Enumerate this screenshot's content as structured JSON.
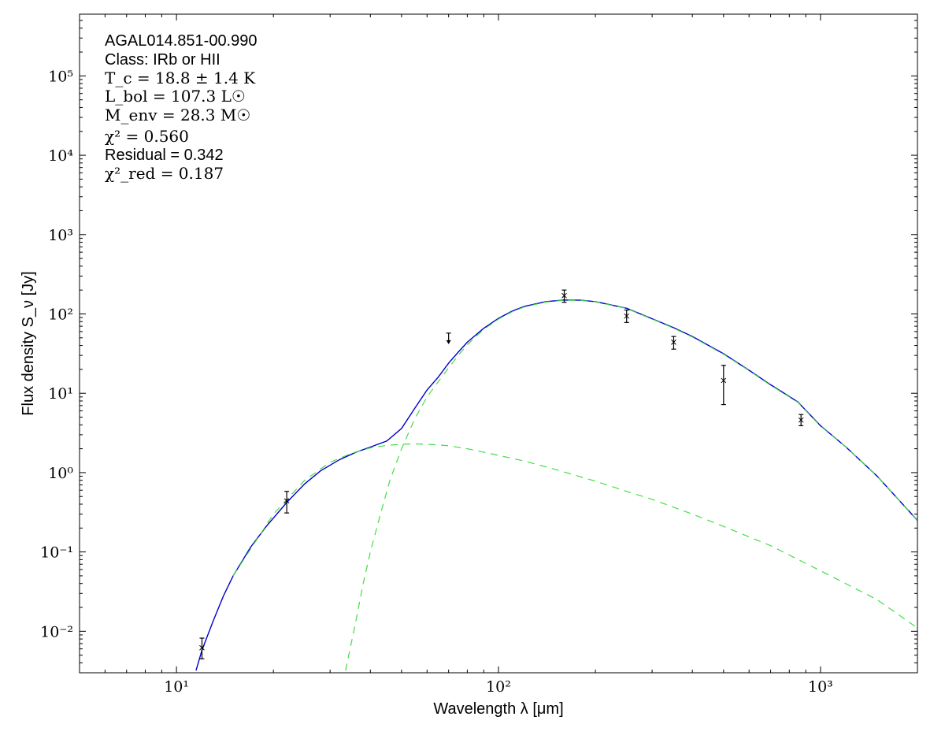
{
  "chart_data": {
    "type": "line",
    "source_name": "AGAL014.851-00.990",
    "annotations": {
      "class_text": "Class: IRb or HII",
      "tc_text": "T_c = 18.8 ± 1.4 K",
      "lbol_text": "L_bol = 107.3 L☉",
      "menv_text": "M_env = 28.3 M☉",
      "chi2_text": "χ² = 0.560",
      "residual_text": "Residual = 0.342",
      "chi2red_text": "χ²_red = 0.187"
    },
    "xlabel": "Wavelength λ [μm]",
    "ylabel": "Flux density S_ν [Jy]",
    "xscale": "log",
    "yscale": "log",
    "xlim": [
      5,
      2000
    ],
    "ylim": [
      0.003,
      600000
    ],
    "xticks": [
      10,
      100,
      1000
    ],
    "xtick_labels": [
      "10¹",
      "10²",
      "10³"
    ],
    "yticks": [
      0.01,
      0.1,
      1,
      10,
      100,
      1000,
      10000,
      100000
    ],
    "ytick_labels": [
      "10⁻²",
      "10⁻¹",
      "10⁰",
      "10¹",
      "10²",
      "10³",
      "10⁴",
      "10⁵"
    ],
    "grid": false,
    "colors": {
      "total": "#0000cc",
      "components": "#44dd44",
      "points": "#000000"
    },
    "series": [
      {
        "style": "solid",
        "x": [
          11.5,
          12,
          13,
          14,
          15,
          17,
          19,
          22,
          25,
          28,
          32,
          36,
          40,
          45,
          50,
          55,
          60,
          65,
          70,
          75,
          80,
          90,
          100,
          110,
          120,
          140,
          160,
          180,
          200,
          250,
          300,
          350,
          400,
          500,
          600,
          700,
          850,
          1000,
          1200,
          1500,
          2000
        ],
        "y": [
          0.0032,
          0.0058,
          0.0135,
          0.028,
          0.05,
          0.115,
          0.21,
          0.42,
          0.72,
          1.05,
          1.45,
          1.8,
          2.1,
          2.5,
          3.6,
          6.5,
          11,
          16,
          24,
          33,
          44,
          66,
          88,
          108,
          124,
          143,
          150,
          149,
          143,
          118,
          87,
          67,
          52,
          31.5,
          19.5,
          12.8,
          7.8,
          3.9,
          2.1,
          0.9,
          0.25
        ]
      },
      {
        "style": "dashed",
        "x": [
          33.5,
          36,
          38,
          40,
          43,
          46,
          50,
          55,
          60,
          65,
          70,
          75,
          80,
          90,
          100,
          110,
          120,
          140,
          160,
          180,
          200,
          250,
          300,
          350,
          400,
          500,
          600,
          700,
          850,
          1000,
          1200,
          1500,
          2000
        ],
        "y": [
          0.0032,
          0.013,
          0.04,
          0.1,
          0.3,
          0.8,
          2.0,
          4.8,
          9.0,
          14,
          21,
          30,
          41,
          64,
          86,
          106,
          122,
          141,
          149,
          148,
          142,
          117,
          86,
          66,
          51,
          31,
          19.3,
          12.6,
          7.7,
          3.85,
          2.1,
          0.9,
          0.25
        ]
      },
      {
        "style": "dashed",
        "x": [
          15,
          20,
          25,
          30,
          35,
          40,
          45,
          50,
          55,
          60,
          70,
          80,
          100,
          120,
          150,
          200,
          250,
          300,
          400,
          500,
          700,
          1000,
          1500,
          2000
        ],
        "y": [
          0.05,
          0.3,
          0.8,
          1.35,
          1.75,
          2.05,
          2.2,
          2.28,
          2.3,
          2.28,
          2.18,
          2.0,
          1.65,
          1.4,
          1.1,
          0.78,
          0.58,
          0.46,
          0.3,
          0.21,
          0.12,
          0.058,
          0.025,
          0.011
        ]
      }
    ],
    "points": [
      {
        "x": 12,
        "y": 0.0062,
        "ylo": 0.0045,
        "yhi": 0.0082,
        "type": "measured"
      },
      {
        "x": 22,
        "y": 0.44,
        "ylo": 0.31,
        "yhi": 0.58,
        "type": "measured"
      },
      {
        "x": 70,
        "y": 50,
        "type": "upper_limit"
      },
      {
        "x": 160,
        "y": 170,
        "ylo": 140,
        "yhi": 200,
        "type": "measured"
      },
      {
        "x": 250,
        "y": 94,
        "ylo": 78,
        "yhi": 112,
        "type": "measured"
      },
      {
        "x": 350,
        "y": 44,
        "ylo": 36,
        "yhi": 52,
        "type": "measured"
      },
      {
        "x": 500,
        "y": 14.5,
        "ylo": 7.2,
        "yhi": 22.5,
        "type": "measured"
      },
      {
        "x": 870,
        "y": 4.6,
        "ylo": 3.9,
        "yhi": 5.4,
        "type": "measured"
      }
    ]
  }
}
